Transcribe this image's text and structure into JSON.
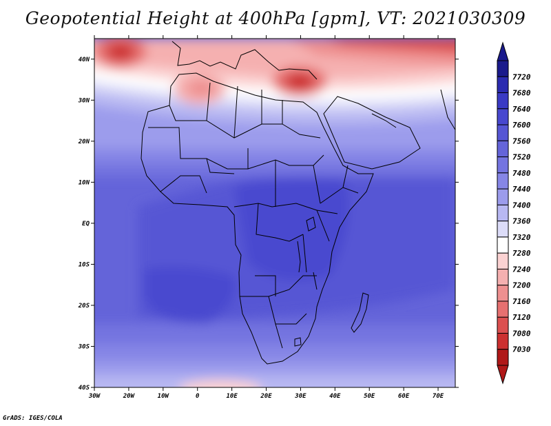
{
  "title": "Geopotential Height at 400hPa [gpm], VT: 2021030309",
  "credit": "GrADS: IGES/COLA",
  "map": {
    "lon_range": [
      -30,
      75
    ],
    "lat_range": [
      -40,
      45
    ],
    "lat_ticks": [
      {
        "value": 40,
        "label": "40N"
      },
      {
        "value": 30,
        "label": "30N"
      },
      {
        "value": 20,
        "label": "20N"
      },
      {
        "value": 10,
        "label": "10N"
      },
      {
        "value": 0,
        "label": "EQ"
      },
      {
        "value": -10,
        "label": "10S"
      },
      {
        "value": -20,
        "label": "20S"
      },
      {
        "value": -30,
        "label": "30S"
      },
      {
        "value": -40,
        "label": "40S"
      }
    ],
    "lon_ticks": [
      {
        "value": -30,
        "label": "30W"
      },
      {
        "value": -20,
        "label": "20W"
      },
      {
        "value": -10,
        "label": "10W"
      },
      {
        "value": 0,
        "label": "0"
      },
      {
        "value": 10,
        "label": "10E"
      },
      {
        "value": 20,
        "label": "20E"
      },
      {
        "value": 30,
        "label": "30E"
      },
      {
        "value": 40,
        "label": "40E"
      },
      {
        "value": 50,
        "label": "50E"
      },
      {
        "value": 60,
        "label": "60E"
      },
      {
        "value": 70,
        "label": "70E"
      }
    ]
  },
  "colorbar": {
    "labels": [
      "7720",
      "7680",
      "7640",
      "7600",
      "7560",
      "7520",
      "7480",
      "7440",
      "7400",
      "7360",
      "7320",
      "7280",
      "7240",
      "7200",
      "7160",
      "7120",
      "7080",
      "7030"
    ],
    "colors": [
      "#1a1a8c",
      "#2b2bb0",
      "#3a3ac4",
      "#4848cf",
      "#5656d4",
      "#6464d9",
      "#7474e0",
      "#8686e6",
      "#9c9cec",
      "#b8b8f2",
      "#dcdcf8",
      "#ffffff",
      "#fbd2d2",
      "#f5b0b0",
      "#ee9090",
      "#e67070",
      "#dc5050",
      "#cc3030",
      "#b01818"
    ]
  }
}
